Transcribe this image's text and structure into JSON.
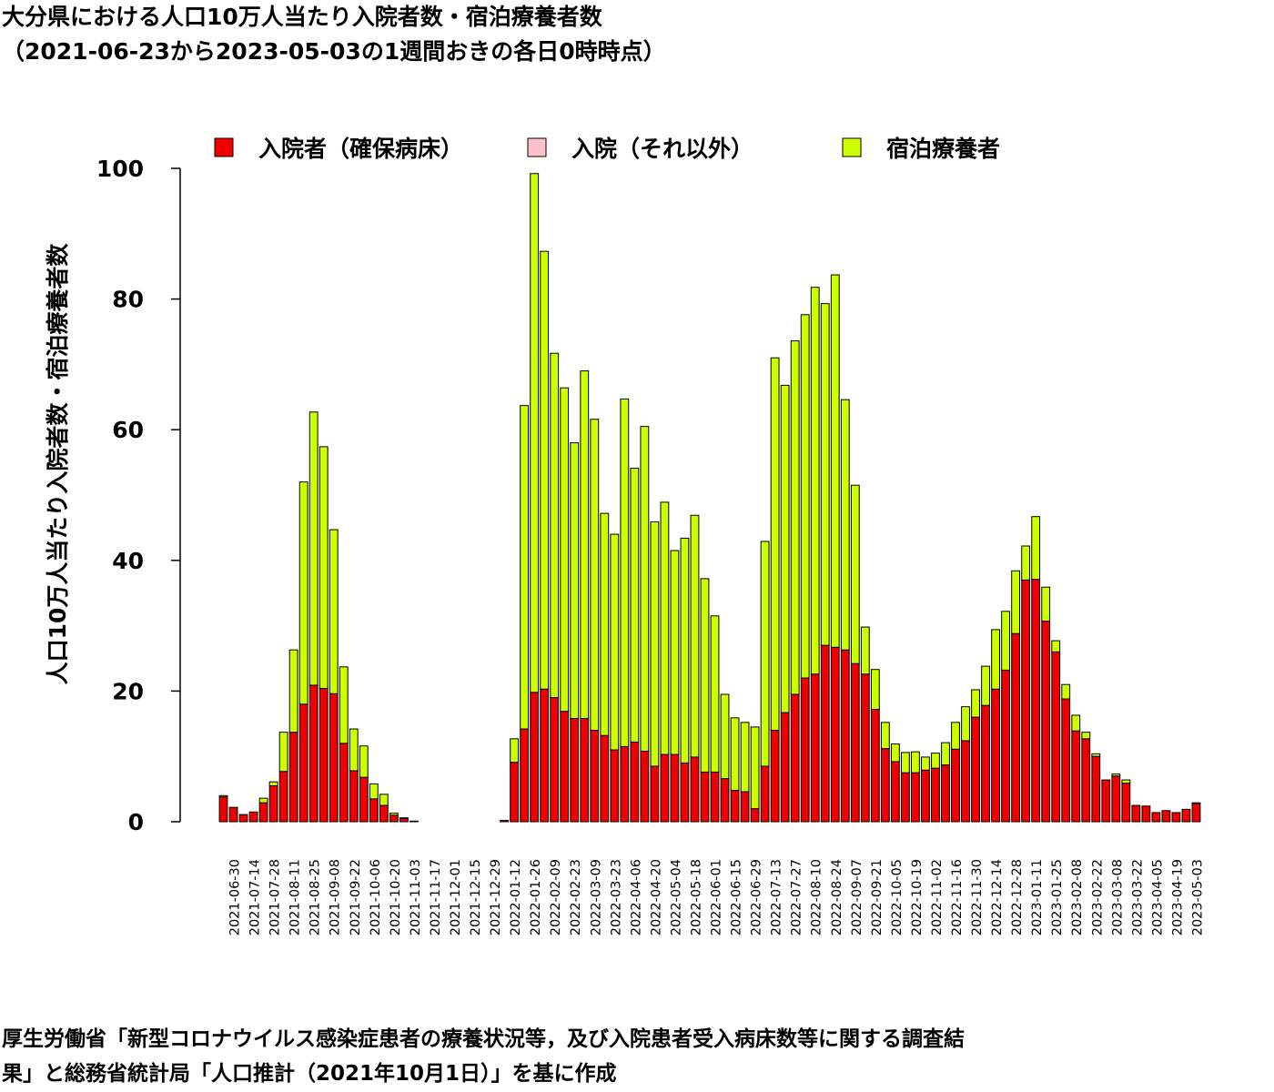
{
  "title_line1": "大分県における人口10万人当たり入院者数・宿泊療養者数",
  "title_line2": "（2021-06-23から2023-05-03の1週間おきの各日0時時点）",
  "source_line1": "厚生労働省「新型コロナウイルス感染症患者の療養状況等，及び入院患者受入病床数等に関する調査結",
  "source_line2": "果」と総務省統計局「人口推計（2021年10月1日）」を基に作成",
  "chart_data": {
    "type": "bar",
    "stacked": true,
    "ylabel": "人口10万人当たり入院者数・宿泊療養者数",
    "xlabel": "",
    "ylim": [
      0,
      100
    ],
    "yticks": [
      0,
      20,
      40,
      60,
      80,
      100
    ],
    "legend_position": "top",
    "tick_every": 2,
    "categories": [
      "2021-06-23",
      "2021-06-30",
      "2021-07-07",
      "2021-07-14",
      "2021-07-21",
      "2021-07-28",
      "2021-08-04",
      "2021-08-11",
      "2021-08-18",
      "2021-08-25",
      "2021-09-01",
      "2021-09-08",
      "2021-09-15",
      "2021-09-22",
      "2021-09-29",
      "2021-10-06",
      "2021-10-13",
      "2021-10-20",
      "2021-10-27",
      "2021-11-03",
      "2021-11-10",
      "2021-11-17",
      "2021-11-24",
      "2021-12-01",
      "2021-12-08",
      "2021-12-15",
      "2021-12-22",
      "2021-12-29",
      "2022-01-05",
      "2022-01-12",
      "2022-01-19",
      "2022-01-26",
      "2022-02-02",
      "2022-02-09",
      "2022-02-16",
      "2022-02-23",
      "2022-03-02",
      "2022-03-09",
      "2022-03-16",
      "2022-03-23",
      "2022-03-30",
      "2022-04-06",
      "2022-04-13",
      "2022-04-20",
      "2022-04-27",
      "2022-05-04",
      "2022-05-11",
      "2022-05-18",
      "2022-05-25",
      "2022-06-01",
      "2022-06-08",
      "2022-06-15",
      "2022-06-22",
      "2022-06-29",
      "2022-07-06",
      "2022-07-13",
      "2022-07-20",
      "2022-07-27",
      "2022-08-03",
      "2022-08-10",
      "2022-08-17",
      "2022-08-24",
      "2022-08-31",
      "2022-09-07",
      "2022-09-14",
      "2022-09-21",
      "2022-09-28",
      "2022-10-05",
      "2022-10-12",
      "2022-10-19",
      "2022-10-26",
      "2022-11-02",
      "2022-11-09",
      "2022-11-16",
      "2022-11-23",
      "2022-11-30",
      "2022-12-07",
      "2022-12-14",
      "2022-12-21",
      "2022-12-28",
      "2023-01-04",
      "2023-01-11",
      "2023-01-18",
      "2023-01-25",
      "2023-02-01",
      "2023-02-08",
      "2023-02-15",
      "2023-02-22",
      "2023-03-01",
      "2023-03-08",
      "2023-03-15",
      "2023-03-22",
      "2023-03-29",
      "2023-04-05",
      "2023-04-12",
      "2023-04-19",
      "2023-04-26",
      "2023-05-03"
    ],
    "series": [
      {
        "name": "入院者（確保病床）",
        "color": "#ee0000",
        "values": [
          3.8,
          2.2,
          1.1,
          1.5,
          2.9,
          5.5,
          7.7,
          13.7,
          18.0,
          20.9,
          20.4,
          19.6,
          12.0,
          7.8,
          6.8,
          3.5,
          2.5,
          1.0,
          0.5,
          0.1,
          0,
          0,
          0,
          0,
          0,
          0,
          0,
          0,
          0.2,
          9.1,
          14.2,
          19.8,
          20.3,
          19.0,
          16.9,
          15.8,
          15.8,
          14.0,
          13.2,
          11.0,
          11.5,
          12.2,
          10.8,
          8.5,
          10.3,
          10.3,
          9.0,
          9.9,
          7.6,
          7.6,
          6.6,
          4.8,
          4.6,
          2.0,
          8.5,
          14.0,
          16.7,
          19.5,
          22.0,
          22.6,
          27.0,
          26.7,
          26.3,
          24.2,
          22.6,
          17.2,
          11.2,
          9.2,
          7.5,
          7.5,
          7.9,
          8.2,
          8.7,
          11.1,
          12.4,
          16.0,
          17.8,
          20.3,
          23.2,
          28.8,
          37.0,
          37.1,
          30.7,
          26.0,
          18.8,
          13.9,
          12.7,
          10.0,
          6.4,
          7.0,
          5.9,
          2.5,
          2.4,
          1.4,
          1.7,
          1.4,
          1.9,
          2.8
        ]
      },
      {
        "name": "入院（それ以外）",
        "color": "#ffc0cb",
        "values": [
          0,
          0,
          0,
          0,
          0,
          0,
          0,
          0,
          0,
          0,
          0,
          0,
          0,
          0,
          0,
          0,
          0,
          0,
          0,
          0,
          0,
          0,
          0,
          0,
          0,
          0,
          0,
          0,
          0,
          0,
          0,
          0,
          0,
          0,
          0,
          0,
          0,
          0,
          0,
          0,
          0,
          0,
          0,
          0,
          0,
          0,
          0,
          0,
          0,
          0,
          0,
          0,
          0,
          0,
          0,
          0,
          0,
          0,
          0,
          0,
          0,
          0,
          0,
          0,
          0,
          0,
          0,
          0,
          0,
          0,
          0,
          0,
          0,
          0,
          0,
          0,
          0,
          0,
          0,
          0,
          0,
          0,
          0,
          0,
          0,
          0,
          0,
          0,
          0,
          0,
          0,
          0,
          0,
          0,
          0,
          0,
          0,
          0
        ]
      },
      {
        "name": "宿泊療養者",
        "color": "#ccff00",
        "values": [
          0.2,
          0,
          0,
          0,
          0.7,
          0.6,
          6.0,
          12.6,
          34.0,
          41.8,
          37.0,
          25.1,
          11.7,
          6.4,
          4.8,
          2.3,
          1.7,
          0.3,
          0.1,
          0,
          0,
          0,
          0,
          0,
          0,
          0,
          0,
          0,
          0,
          3.6,
          49.5,
          79.4,
          67.0,
          52.7,
          49.5,
          42.2,
          53.2,
          47.6,
          34.0,
          33.0,
          53.2,
          41.9,
          49.7,
          37.4,
          38.6,
          31.2,
          34.4,
          37.0,
          29.6,
          23.9,
          12.9,
          11.1,
          10.6,
          12.5,
          34.4,
          57.0,
          50.1,
          54.1,
          55.6,
          59.2,
          52.3,
          57.0,
          38.3,
          27.3,
          7.2,
          6.1,
          4.0,
          2.7,
          3.1,
          3.2,
          2.0,
          2.3,
          3.4,
          4.1,
          5.2,
          4.2,
          6.0,
          9.1,
          9.0,
          9.6,
          5.2,
          9.6,
          5.2,
          1.7,
          2.2,
          2.4,
          1.0,
          0.4,
          0,
          0.3,
          0.5,
          0,
          0,
          0,
          0,
          0,
          0,
          0.1
        ]
      }
    ]
  }
}
